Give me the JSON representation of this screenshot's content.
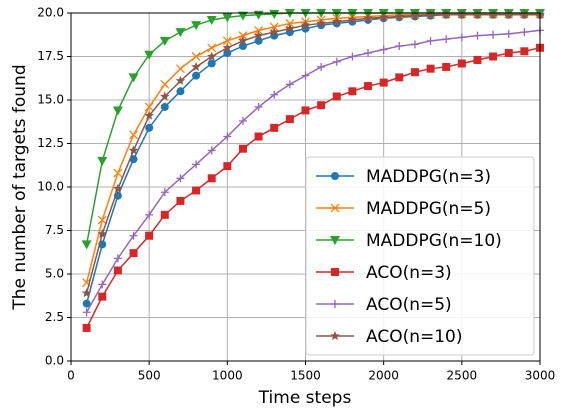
{
  "chart_data": {
    "type": "line",
    "xlabel": "Time steps",
    "ylabel": "The number of targets found",
    "x": [
      100,
      200,
      300,
      400,
      500,
      600,
      700,
      800,
      900,
      1000,
      1100,
      1200,
      1300,
      1400,
      1500,
      1600,
      1700,
      1800,
      1900,
      2000,
      2100,
      2200,
      2300,
      2400,
      2500,
      2600,
      2700,
      2800,
      2900,
      3000
    ],
    "series": [
      {
        "name": "MADDPG(n=3)",
        "color": "#1f77b4",
        "marker": "o",
        "values": [
          3.3,
          6.7,
          9.5,
          11.6,
          13.4,
          14.6,
          15.5,
          16.4,
          17.1,
          17.7,
          18.1,
          18.4,
          18.7,
          18.9,
          19.1,
          19.3,
          19.4,
          19.5,
          19.6,
          19.7,
          19.75,
          19.8,
          19.85,
          19.9,
          19.9,
          19.9,
          19.9,
          19.9,
          19.9,
          19.9
        ]
      },
      {
        "name": "MADDPG(n=5)",
        "color": "#ff7f0e",
        "marker": "x",
        "values": [
          4.5,
          8.1,
          10.8,
          13.0,
          14.6,
          15.9,
          16.8,
          17.5,
          18.0,
          18.4,
          18.7,
          19.0,
          19.2,
          19.4,
          19.5,
          19.6,
          19.7,
          19.75,
          19.8,
          19.85,
          19.9,
          19.9,
          19.9,
          19.95,
          19.95,
          19.95,
          19.95,
          19.95,
          19.95,
          19.95
        ]
      },
      {
        "name": "MADDPG(n=10)",
        "color": "#2ca02c",
        "marker": "v",
        "values": [
          6.7,
          11.5,
          14.4,
          16.3,
          17.6,
          18.4,
          18.9,
          19.3,
          19.6,
          19.75,
          19.85,
          19.9,
          19.95,
          20.0,
          20.0,
          20.0,
          20.0,
          20.0,
          20.0,
          20.0,
          20.0,
          20.0,
          20.0,
          20.0,
          20.0,
          20.0,
          20.0,
          20.0,
          20.0,
          20.0
        ]
      },
      {
        "name": "ACO(n=3)",
        "color": "#d62728",
        "marker": "s",
        "values": [
          1.9,
          3.7,
          5.2,
          6.2,
          7.2,
          8.4,
          9.2,
          9.8,
          10.5,
          11.2,
          12.2,
          12.9,
          13.4,
          13.9,
          14.4,
          14.7,
          15.2,
          15.5,
          15.8,
          16.0,
          16.3,
          16.6,
          16.8,
          16.9,
          17.1,
          17.3,
          17.5,
          17.7,
          17.8,
          18.0
        ]
      },
      {
        "name": "ACO(n=5)",
        "color": "#9467bd",
        "marker": "+",
        "values": [
          2.8,
          4.4,
          5.9,
          7.2,
          8.4,
          9.7,
          10.5,
          11.3,
          12.1,
          12.9,
          13.8,
          14.6,
          15.3,
          15.9,
          16.4,
          16.9,
          17.2,
          17.5,
          17.7,
          17.9,
          18.1,
          18.2,
          18.4,
          18.5,
          18.6,
          18.7,
          18.75,
          18.8,
          18.9,
          19.0
        ]
      },
      {
        "name": "ACO(n=10)",
        "color": "#8c564b",
        "marker": "*",
        "values": [
          3.9,
          7.3,
          9.9,
          12.1,
          14.1,
          15.2,
          16.1,
          16.9,
          17.5,
          18.0,
          18.4,
          18.7,
          18.9,
          19.1,
          19.3,
          19.4,
          19.5,
          19.6,
          19.7,
          19.75,
          19.8,
          19.85,
          19.9,
          19.9,
          19.9,
          19.9,
          19.9,
          19.9,
          19.9,
          19.9
        ]
      }
    ],
    "xlim": [
      0,
      3000
    ],
    "xticks": [
      0,
      500,
      1000,
      1500,
      2000,
      2500,
      3000
    ],
    "ylim": [
      0,
      20
    ],
    "yticks": [
      {
        "value": 0,
        "label": "0.0"
      },
      2.5,
      {
        "value": 5,
        "label": "5.0"
      },
      7.5,
      {
        "value": 10,
        "label": "10.0"
      },
      12.5,
      {
        "value": 15,
        "label": "15.0"
      },
      17.5,
      {
        "value": 20,
        "label": "20.0"
      }
    ],
    "grid": true,
    "legend": "lower right"
  }
}
